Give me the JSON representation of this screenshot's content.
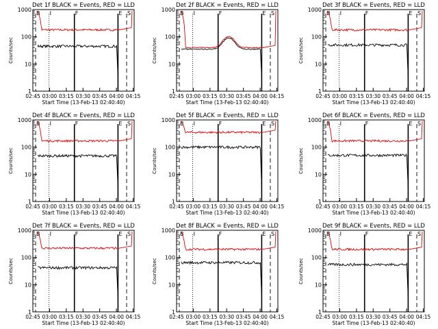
{
  "figure": {
    "background": "#ffffff",
    "colors": {
      "events": "#000000",
      "lld": "#dd0000",
      "axis": "#000000"
    }
  },
  "shared": {
    "ylabel": "Counts/sec",
    "xlabel": "Start Time (13-Feb-13 02:40:40)",
    "x_ticks": [
      "02:45",
      "03:00",
      "03:15",
      "03:30",
      "03:45",
      "04:00",
      "04:15"
    ],
    "y_ticks": [
      "1",
      "10",
      "100",
      "1000"
    ],
    "marker_labels": [
      "B",
      "I",
      "F",
      "E",
      "S"
    ]
  },
  "chart_data": [
    {
      "type": "line",
      "title": "Det 1f BLACK = Events, RED = LLD",
      "x_minutes_after_start_ticks": [
        4.33,
        19.33,
        34.33,
        49.33,
        64.33,
        79.33,
        94.33
      ],
      "ylim": [
        1,
        1000
      ],
      "yscale": "log",
      "series": [
        {
          "name": "Events",
          "color": "#000000",
          "level": 45
        },
        {
          "name": "LLD",
          "color": "#dd0000",
          "level": 180
        }
      ]
    },
    {
      "type": "line",
      "title": "Det 2f BLACK = Events, RED = LLD",
      "x_minutes_after_start_ticks": [
        4.33,
        19.33,
        34.33,
        49.33,
        64.33,
        79.33,
        94.33
      ],
      "ylim": [
        1,
        1000
      ],
      "yscale": "log",
      "series": [
        {
          "name": "Events",
          "color": "#000000",
          "level": 35
        },
        {
          "name": "LLD",
          "color": "#dd0000",
          "level": 40
        }
      ]
    },
    {
      "type": "line",
      "title": "Det 3f BLACK = Events, RED = LLD",
      "x_minutes_after_start_ticks": [
        4.33,
        19.33,
        34.33,
        49.33,
        64.33,
        79.33,
        94.33
      ],
      "ylim": [
        1,
        1000
      ],
      "yscale": "log",
      "series": [
        {
          "name": "Events",
          "color": "#000000",
          "level": 50
        },
        {
          "name": "LLD",
          "color": "#dd0000",
          "level": 180
        }
      ]
    },
    {
      "type": "line",
      "title": "Det 4f BLACK = Events, RED = LLD",
      "x_minutes_after_start_ticks": [
        4.33,
        19.33,
        34.33,
        49.33,
        64.33,
        79.33,
        94.33
      ],
      "ylim": [
        1,
        1000
      ],
      "yscale": "log",
      "series": [
        {
          "name": "Events",
          "color": "#000000",
          "level": 48
        },
        {
          "name": "LLD",
          "color": "#dd0000",
          "level": 170
        }
      ]
    },
    {
      "type": "line",
      "title": "Det 5f BLACK = Events, RED = LLD",
      "x_minutes_after_start_ticks": [
        4.33,
        19.33,
        34.33,
        49.33,
        64.33,
        79.33,
        94.33
      ],
      "ylim": [
        1,
        1000
      ],
      "yscale": "log",
      "series": [
        {
          "name": "Events",
          "color": "#000000",
          "level": 100
        },
        {
          "name": "LLD",
          "color": "#dd0000",
          "level": 350
        }
      ]
    },
    {
      "type": "line",
      "title": "Det 6f BLACK = Events, RED = LLD",
      "x_minutes_after_start_ticks": [
        4.33,
        19.33,
        34.33,
        49.33,
        64.33,
        79.33,
        94.33
      ],
      "ylim": [
        1,
        1000
      ],
      "yscale": "log",
      "series": [
        {
          "name": "Events",
          "color": "#000000",
          "level": 50
        },
        {
          "name": "LLD",
          "color": "#dd0000",
          "level": 170
        }
      ]
    },
    {
      "type": "line",
      "title": "Det 7f BLACK = Events, RED = LLD",
      "x_minutes_after_start_ticks": [
        4.33,
        19.33,
        34.33,
        49.33,
        64.33,
        79.33,
        94.33
      ],
      "ylim": [
        1,
        1000
      ],
      "yscale": "log",
      "series": [
        {
          "name": "Events",
          "color": "#000000",
          "level": 42
        },
        {
          "name": "LLD",
          "color": "#dd0000",
          "level": 220
        }
      ]
    },
    {
      "type": "line",
      "title": "Det 8f BLACK = Events, RED = LLD",
      "x_minutes_after_start_ticks": [
        4.33,
        19.33,
        34.33,
        49.33,
        64.33,
        79.33,
        94.33
      ],
      "ylim": [
        1,
        1000
      ],
      "yscale": "log",
      "series": [
        {
          "name": "Events",
          "color": "#000000",
          "level": 65
        },
        {
          "name": "LLD",
          "color": "#dd0000",
          "level": 200
        }
      ]
    },
    {
      "type": "line",
      "title": "Det 9f BLACK = Events, RED = LLD",
      "x_minutes_after_start_ticks": [
        4.33,
        19.33,
        34.33,
        49.33,
        64.33,
        79.33,
        94.33
      ],
      "ylim": [
        1,
        1000
      ],
      "yscale": "log",
      "series": [
        {
          "name": "Events",
          "color": "#000000",
          "level": 55
        },
        {
          "name": "LLD",
          "color": "#dd0000",
          "level": 200
        }
      ]
    }
  ]
}
